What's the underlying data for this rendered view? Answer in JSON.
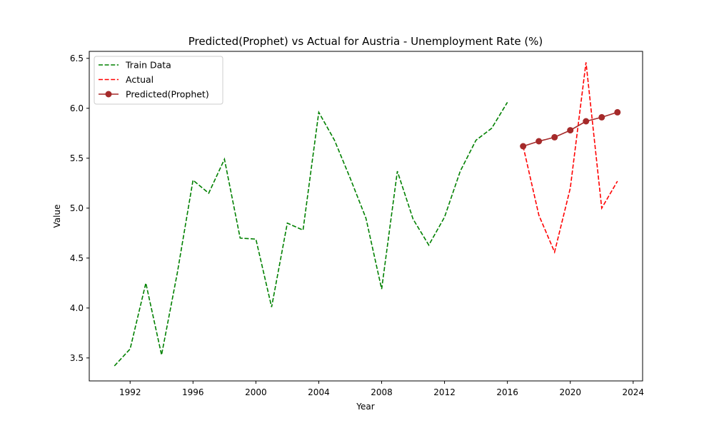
{
  "chart_data": {
    "type": "line",
    "title": "Predicted(Prophet) vs Actual for Austria - Unemployment Rate (%)",
    "xlabel": "Year",
    "ylabel": "Value",
    "xlim": [
      1989.4,
      2024.6
    ],
    "ylim": [
      3.27,
      6.57
    ],
    "x_ticks": [
      1992,
      1996,
      2000,
      2004,
      2008,
      2012,
      2016,
      2020,
      2024
    ],
    "y_ticks": [
      3.5,
      4.0,
      4.5,
      5.0,
      5.5,
      6.0,
      6.5
    ],
    "grid": false,
    "legend": "top-left",
    "series": [
      {
        "name": "Train Data",
        "color": "#008000",
        "style": "dashed",
        "markers": false,
        "x": [
          1991,
          1992,
          1993,
          1994,
          1995,
          1996,
          1997,
          1998,
          1999,
          2000,
          2001,
          2002,
          2003,
          2004,
          2005,
          2006,
          2007,
          2008,
          2009,
          2010,
          2011,
          2012,
          2013,
          2014,
          2015,
          2016
        ],
        "y": [
          3.42,
          3.59,
          4.25,
          3.53,
          4.35,
          5.28,
          5.15,
          5.49,
          4.7,
          4.69,
          4.01,
          4.85,
          4.78,
          5.96,
          5.68,
          5.3,
          4.9,
          4.19,
          5.37,
          4.89,
          4.63,
          4.91,
          5.37,
          5.68,
          5.8,
          6.06
        ]
      },
      {
        "name": "Actual",
        "color": "#ff0000",
        "style": "dashed",
        "markers": false,
        "x": [
          2017,
          2018,
          2019,
          2020,
          2021,
          2022,
          2023
        ],
        "y": [
          5.62,
          4.93,
          4.56,
          5.2,
          6.46,
          5.0,
          5.27
        ]
      },
      {
        "name": "Predicted(Prophet)",
        "color": "#a52a2a",
        "style": "solid",
        "markers": true,
        "x": [
          2017,
          2018,
          2019,
          2020,
          2021,
          2022,
          2023
        ],
        "y": [
          5.62,
          5.67,
          5.71,
          5.78,
          5.87,
          5.91,
          5.96
        ]
      }
    ]
  }
}
